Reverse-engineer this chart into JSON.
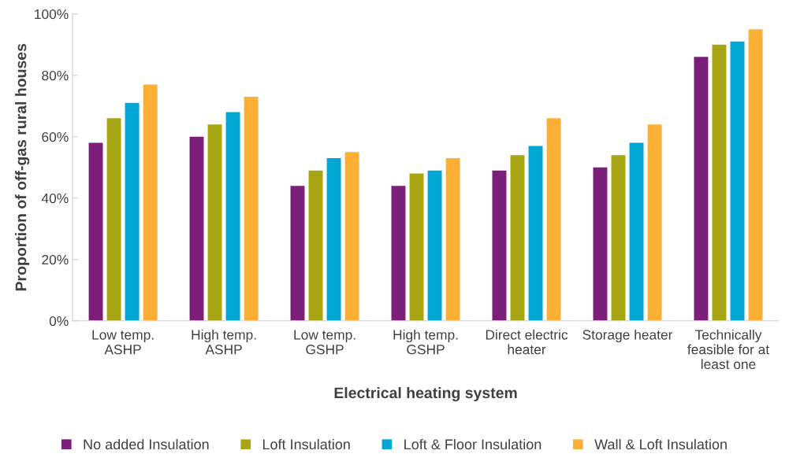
{
  "chart_data": {
    "type": "bar",
    "xlabel": "Electrical heating system",
    "ylabel": "Proportion of off-gas rural houses",
    "categories": [
      "Low temp.\nASHP",
      "High temp.\nASHP",
      "Low temp.\nGSHP",
      "High temp.\nGSHP",
      "Direct electric\nheater",
      "Storage heater",
      "Technically\nfeasible for at\nleast one"
    ],
    "series": [
      {
        "name": "No added Insulation",
        "color": "#7b1f7a",
        "values": [
          58,
          60,
          44,
          44,
          49,
          50,
          86
        ]
      },
      {
        "name": "Loft Insulation",
        "color": "#a7a514",
        "values": [
          66,
          64,
          49,
          48,
          54,
          54,
          90
        ]
      },
      {
        "name": "Loft & Floor Insulation",
        "color": "#00a7d4",
        "values": [
          71,
          68,
          53,
          49,
          57,
          58,
          91
        ]
      },
      {
        "name": "Wall & Loft Insulation",
        "color": "#fbaf35",
        "values": [
          77,
          73,
          55,
          53,
          66,
          64,
          95
        ]
      }
    ],
    "ylim": [
      0,
      100
    ],
    "yticks": [
      {
        "value": 0,
        "label": "0%"
      },
      {
        "value": 20,
        "label": "20%"
      },
      {
        "value": 40,
        "label": "40%"
      },
      {
        "value": 60,
        "label": "60%"
      },
      {
        "value": 80,
        "label": "80%"
      },
      {
        "value": 100,
        "label": "100%"
      }
    ],
    "grid": false,
    "legend": "bottom"
  }
}
